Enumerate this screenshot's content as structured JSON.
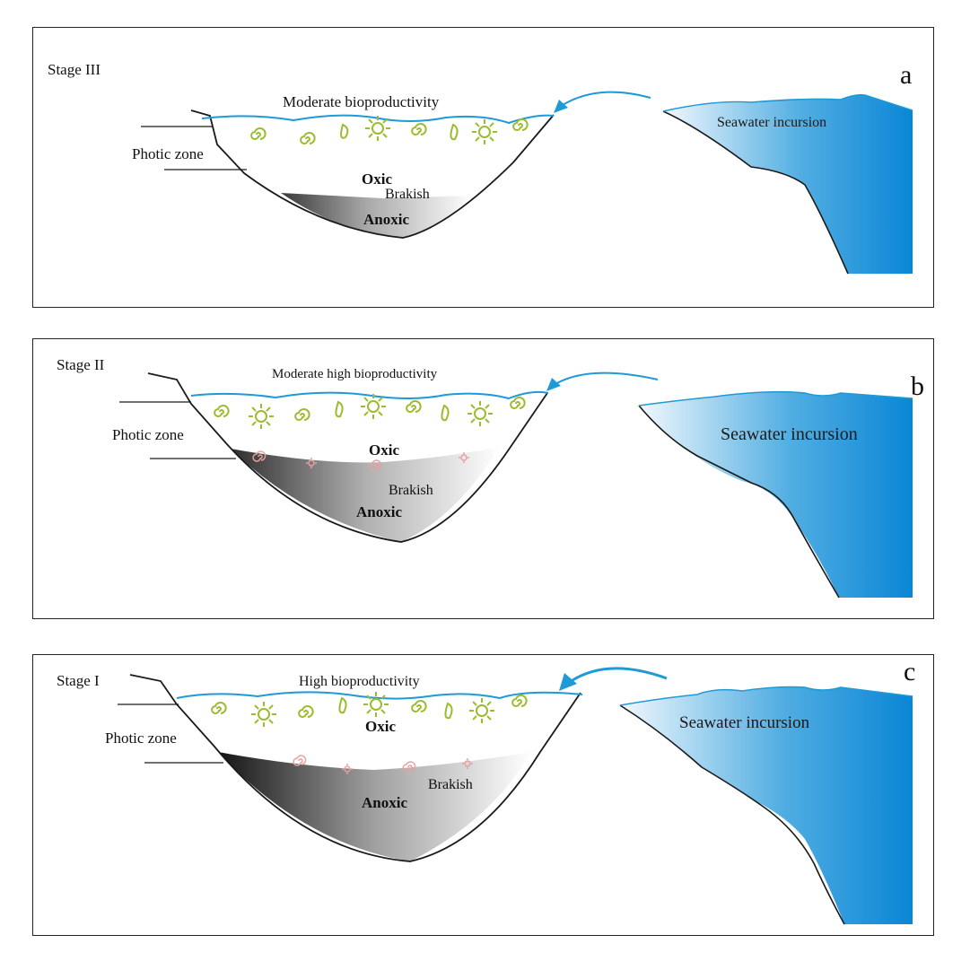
{
  "panels": [
    {
      "id": "a",
      "letter": "a",
      "stage": "Stage III",
      "bioproductivity": "Moderate  bioproductivity",
      "photic": "Photic zone",
      "oxic": "Oxic",
      "brakish": "Brakish",
      "anoxic": "Anoxic",
      "seawater": "Seawater incursion"
    },
    {
      "id": "b",
      "letter": "b",
      "stage": "Stage II",
      "bioproductivity": "Moderate high bioproductivity",
      "photic": "Photic zone",
      "oxic": "Oxic",
      "brakish": "Brakish",
      "anoxic": "Anoxic",
      "seawater": "Seawater incursion"
    },
    {
      "id": "c",
      "letter": "c",
      "stage": "Stage I",
      "bioproductivity": "High bioproductivity",
      "photic": "Photic zone",
      "oxic": "Oxic",
      "brakish": "Brakish",
      "anoxic": "Anoxic",
      "seawater": "Seawater incursion"
    }
  ],
  "colors": {
    "water_line": "#1e9ad6",
    "sea_dark": "#0a8cd8",
    "sea_light": "#eef6fc",
    "organism_green": "#9abc2e",
    "organism_pink": "#e8a0a0",
    "basin_outline": "#1a1a1a",
    "anoxic_dark": "#1e1e1e"
  },
  "icons": {
    "spiral": "spiral-organism-icon",
    "sun": "sun-organism-icon",
    "leaf": "leaf-organism-icon",
    "arrow": "seawater-arrow-icon"
  }
}
